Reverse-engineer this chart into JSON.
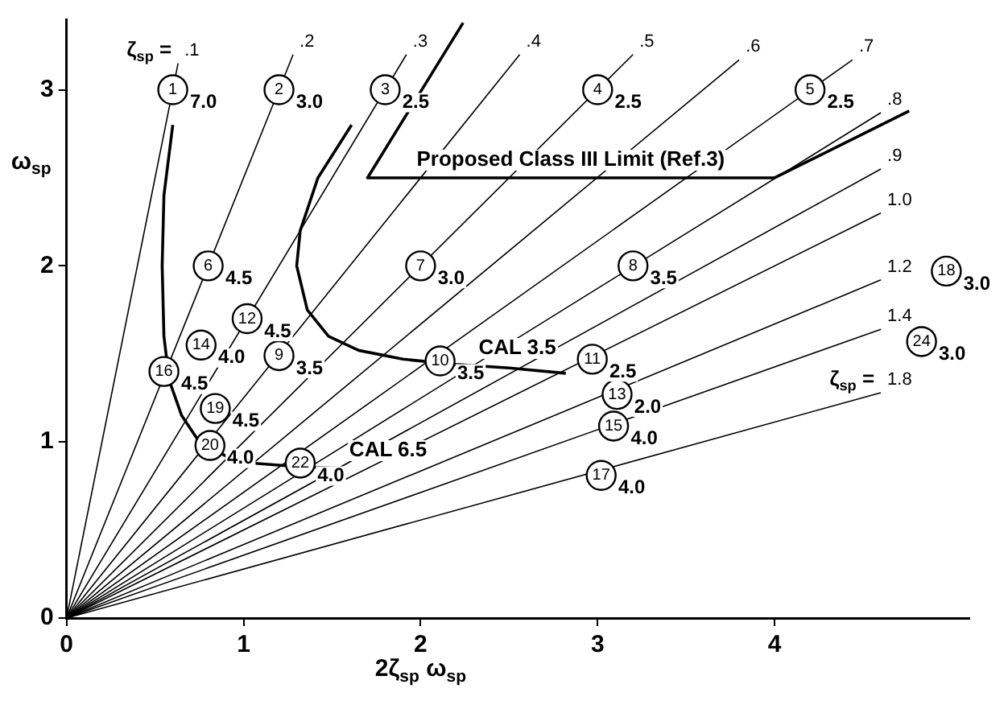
{
  "chart_data": {
    "type": "line",
    "xlabel": "2ζ$_{sp}$ ω$_{sp}$",
    "ylabel": "ω$_{sp}$",
    "xlim": [
      0,
      5.1
    ],
    "ylim": [
      0,
      3.4
    ],
    "xticks": [
      0,
      1,
      2,
      3,
      4
    ],
    "yticks": [
      0,
      1,
      2,
      3
    ],
    "grid": false,
    "marker": "none",
    "series": [
      {
        "name": ".1",
        "color": "#000000",
        "x": [
          0,
          0.63
        ],
        "values": [
          0,
          3.15
        ]
      },
      {
        "name": ".2",
        "color": "#000000",
        "x": [
          0,
          1.28
        ],
        "values": [
          0,
          3.2
        ]
      },
      {
        "name": ".3",
        "color": "#000000",
        "x": [
          0,
          1.92
        ],
        "values": [
          0,
          3.2
        ]
      },
      {
        "name": ".4",
        "color": "#000000",
        "x": [
          0,
          2.56
        ],
        "values": [
          0,
          3.2
        ]
      },
      {
        "name": ".5",
        "color": "#000000",
        "x": [
          0,
          3.2
        ],
        "values": [
          0,
          3.2
        ]
      },
      {
        "name": ".6",
        "color": "#000000",
        "x": [
          0,
          3.8
        ],
        "values": [
          0,
          3.17
        ]
      },
      {
        "name": ".7",
        "color": "#000000",
        "x": [
          0,
          4.44
        ],
        "values": [
          0,
          3.17
        ]
      },
      {
        "name": ".8",
        "color": "#000000",
        "x": [
          0,
          4.6
        ],
        "values": [
          0,
          2.87
        ]
      },
      {
        "name": ".9",
        "color": "#000000",
        "x": [
          0,
          4.6
        ],
        "values": [
          0,
          2.55
        ]
      },
      {
        "name": "1.0",
        "color": "#000000",
        "x": [
          0,
          4.6
        ],
        "values": [
          0,
          2.3
        ]
      },
      {
        "name": "1.2",
        "color": "#000000",
        "x": [
          0,
          4.6
        ],
        "values": [
          0,
          1.92
        ]
      },
      {
        "name": "1.4",
        "color": "#000000",
        "x": [
          0,
          4.6
        ],
        "values": [
          0,
          1.64
        ]
      },
      {
        "name": "1.8",
        "color": "#000000",
        "x": [
          0,
          4.6
        ],
        "values": [
          0,
          1.28
        ]
      },
      {
        "color": "#000000",
        "x": [
          0.6,
          0.55,
          0.54,
          0.55,
          0.58,
          0.65,
          0.75,
          0.9,
          1.05,
          1.3,
          1.57
        ],
        "values": [
          2.8,
          2.4,
          2.0,
          1.6,
          1.35,
          1.15,
          1.0,
          0.92,
          0.88,
          0.86,
          0.85
        ]
      },
      {
        "color": "#000000",
        "x": [
          1.61,
          1.42,
          1.32,
          1.3,
          1.36,
          1.48,
          1.65,
          1.9,
          2.2,
          2.5,
          2.82
        ],
        "values": [
          2.8,
          2.5,
          2.2,
          2.0,
          1.75,
          1.6,
          1.52,
          1.47,
          1.44,
          1.42,
          1.39
        ]
      },
      {
        "color": "#000000",
        "x": [
          2.24,
          1.7,
          4.0,
          4.76
        ],
        "values": [
          3.38,
          2.5,
          2.5,
          2.88
        ]
      },
      {
        "type": "scatter",
        "color": "#000000",
        "marker": "circle",
        "x": [
          0.6,
          1.2,
          1.8,
          3.0,
          4.2,
          0.8,
          2.0,
          3.2,
          1.2,
          2.11,
          2.97,
          1.02,
          3.11,
          0.76,
          3.09,
          0.55,
          3.02,
          4.97,
          0.84,
          0.81,
          1.32,
          4.83
        ],
        "values": [
          3.0,
          3.0,
          3.0,
          3.0,
          3.0,
          2.0,
          2.0,
          2.0,
          1.49,
          1.46,
          1.47,
          1.7,
          1.27,
          1.55,
          1.09,
          1.4,
          0.81,
          1.97,
          1.19,
          0.98,
          0.88,
          1.57
        ]
      }
    ],
    "annotations": [
      {
        "text": "1",
        "x": 0.6,
        "y": 3.0
      },
      {
        "text": "7.0",
        "x": 0.6,
        "y": 3.0
      },
      {
        "text": "2",
        "x": 1.2,
        "y": 3.0
      },
      {
        "text": "3.0",
        "x": 1.2,
        "y": 3.0
      },
      {
        "text": "3",
        "x": 1.8,
        "y": 3.0
      },
      {
        "text": "2.5",
        "x": 1.8,
        "y": 3.0
      },
      {
        "text": "4",
        "x": 3.0,
        "y": 3.0
      },
      {
        "text": "2.5",
        "x": 3.0,
        "y": 3.0
      },
      {
        "text": "5",
        "x": 4.2,
        "y": 3.0
      },
      {
        "text": "2.5",
        "x": 4.2,
        "y": 3.0
      },
      {
        "text": "6",
        "x": 0.8,
        "y": 2.0
      },
      {
        "text": "4.5",
        "x": 0.8,
        "y": 2.0
      },
      {
        "text": "7",
        "x": 2.0,
        "y": 2.0
      },
      {
        "text": "3.0",
        "x": 2.0,
        "y": 2.0
      },
      {
        "text": "8",
        "x": 3.2,
        "y": 2.0
      },
      {
        "text": "3.5",
        "x": 3.2,
        "y": 2.0
      },
      {
        "text": "9",
        "x": 1.2,
        "y": 1.49
      },
      {
        "text": "3.5",
        "x": 1.2,
        "y": 1.49
      },
      {
        "text": "10",
        "x": 2.11,
        "y": 1.46
      },
      {
        "text": "3.5",
        "x": 2.11,
        "y": 1.46
      },
      {
        "text": "11",
        "x": 2.97,
        "y": 1.47
      },
      {
        "text": "2.5",
        "x": 2.97,
        "y": 1.47
      },
      {
        "text": "12",
        "x": 1.02,
        "y": 1.7
      },
      {
        "text": "4.5",
        "x": 1.02,
        "y": 1.7
      },
      {
        "text": "13",
        "x": 3.11,
        "y": 1.27
      },
      {
        "text": "2.0",
        "x": 3.11,
        "y": 1.27
      },
      {
        "text": "14",
        "x": 0.76,
        "y": 1.55
      },
      {
        "text": "4.0",
        "x": 0.76,
        "y": 1.55
      },
      {
        "text": "15",
        "x": 3.09,
        "y": 1.09
      },
      {
        "text": "4.0",
        "x": 3.09,
        "y": 1.09
      },
      {
        "text": "16",
        "x": 0.55,
        "y": 1.4
      },
      {
        "text": "4.5",
        "x": 0.55,
        "y": 1.4
      },
      {
        "text": "17",
        "x": 3.02,
        "y": 0.81
      },
      {
        "text": "4.0",
        "x": 3.02,
        "y": 0.81
      },
      {
        "text": "18",
        "x": 4.97,
        "y": 1.97
      },
      {
        "text": "3.0",
        "x": 4.97,
        "y": 1.97
      },
      {
        "text": "19",
        "x": 0.84,
        "y": 1.19
      },
      {
        "text": "4.5",
        "x": 0.84,
        "y": 1.19
      },
      {
        "text": "20",
        "x": 0.81,
        "y": 0.98
      },
      {
        "text": "4.0",
        "x": 0.81,
        "y": 0.98
      },
      {
        "text": "22",
        "x": 1.32,
        "y": 0.88
      },
      {
        "text": "4.0",
        "x": 1.32,
        "y": 0.88
      },
      {
        "text": "24",
        "x": 4.83,
        "y": 1.57
      },
      {
        "text": "3.0",
        "x": 4.83,
        "y": 1.57
      },
      "ζ$_{sp}$ =",
      "ζ$_{sp}$ =",
      {
        "text": "CAL 6.5",
        "x": 1.57,
        "y": 0.85
      },
      {
        "text": "CAL 3.5",
        "x": 2.3,
        "y": 1.43
      },
      {
        "text": "Proposed Class III Limit (Ref.3)",
        "x": 1.95,
        "y": 2.5
      }
    ]
  }
}
